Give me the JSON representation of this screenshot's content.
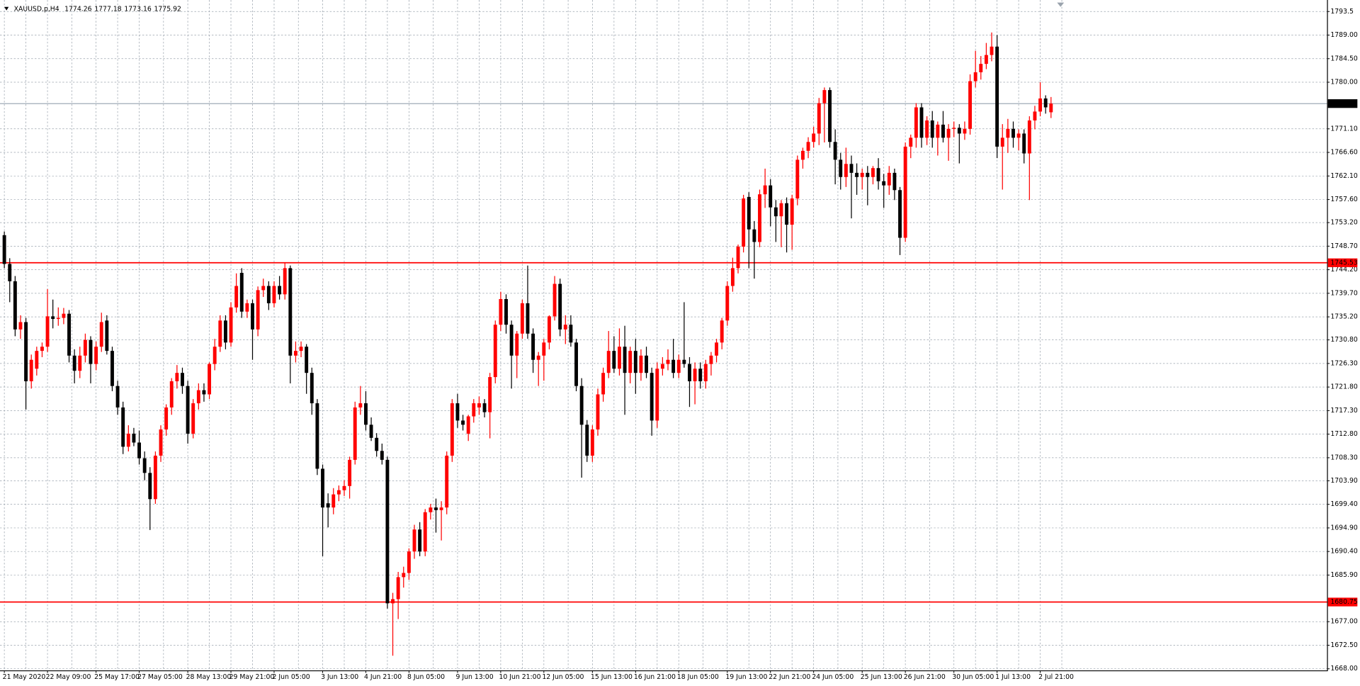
{
  "chart_data": {
    "type": "candlestick",
    "title": "XAUUSD.p,H4",
    "up_color": "#ff0000",
    "down_color": "#000000",
    "grid": true,
    "price_line_color": "#778899",
    "levels": [
      {
        "value": 1745.53,
        "color": "#ff0000"
      },
      {
        "value": 1680.75,
        "color": "#ff0000"
      }
    ],
    "ylim": [
      1667.7,
      1795.7
    ],
    "yticks": [
      1793.5,
      {
        "value": 1789,
        "label": "1789.00"
      },
      {
        "value": 1784.5,
        "label": "1784.50"
      },
      {
        "value": 1780,
        "label": "1780.00"
      },
      {
        "value": 1771.1,
        "label": "1771.10"
      },
      {
        "value": 1766.6,
        "label": "1766.60"
      },
      {
        "value": 1762.1,
        "label": "1762.10"
      },
      {
        "value": 1757.6,
        "label": "1757.60"
      },
      {
        "value": 1753.2,
        "label": "1753.20"
      },
      {
        "value": 1748.7,
        "label": "1748.70"
      },
      {
        "value": 1744.2,
        "label": "1744.20"
      },
      {
        "value": 1739.7,
        "label": "1739.70"
      },
      {
        "value": 1735.2,
        "label": "1735.20"
      },
      {
        "value": 1730.8,
        "label": "1730.80"
      },
      {
        "value": 1726.3,
        "label": "1726.30"
      },
      {
        "value": 1721.8,
        "label": "1721.80"
      },
      {
        "value": 1717.3,
        "label": "1717.30"
      },
      {
        "value": 1712.8,
        "label": "1712.80"
      },
      {
        "value": 1708.3,
        "label": "1708.30"
      },
      {
        "value": 1703.9,
        "label": "1703.90"
      },
      {
        "value": 1699.4,
        "label": "1699.40"
      },
      {
        "value": 1694.9,
        "label": "1694.90"
      },
      {
        "value": 1690.4,
        "label": "1690.40"
      },
      {
        "value": 1685.9,
        "label": "1685.90"
      },
      {
        "value": 1677,
        "label": "1677.00"
      },
      {
        "value": 1672.5,
        "label": "1672.50"
      },
      {
        "value": 1668,
        "label": "1668.00"
      }
    ],
    "categories": [
      "21 May 2020",
      null,
      null,
      null,
      null,
      null,
      null,
      null,
      "22 May 09:00",
      null,
      null,
      null,
      null,
      null,
      null,
      null,
      null,
      "25 May 17:00",
      null,
      null,
      null,
      null,
      null,
      null,
      null,
      "27 May 05:00",
      null,
      null,
      null,
      null,
      null,
      null,
      null,
      null,
      "28 May 13:00",
      null,
      null,
      null,
      null,
      null,
      null,
      null,
      "29 May 21:00",
      null,
      null,
      null,
      null,
      null,
      null,
      null,
      "2 Jun 05:00",
      null,
      null,
      null,
      null,
      null,
      null,
      null,
      null,
      "3 Jun 13:00",
      null,
      null,
      null,
      null,
      null,
      null,
      null,
      "4 Jun 21:00",
      null,
      null,
      null,
      null,
      null,
      null,
      null,
      "8 Jun 05:00",
      null,
      null,
      null,
      null,
      null,
      null,
      null,
      null,
      "9 Jun 13:00",
      null,
      null,
      null,
      null,
      null,
      null,
      null,
      "10 Jun 21:00",
      null,
      null,
      null,
      null,
      null,
      null,
      null,
      "12 Jun 05:00",
      null,
      null,
      null,
      null,
      null,
      null,
      null,
      null,
      "15 Jun 13:00",
      null,
      null,
      null,
      null,
      null,
      null,
      null,
      "16 Jun 21:00",
      null,
      null,
      null,
      null,
      null,
      null,
      null,
      "18 Jun 05:00",
      null,
      null,
      null,
      null,
      null,
      null,
      null,
      null,
      "19 Jun 13:00",
      null,
      null,
      null,
      null,
      null,
      null,
      null,
      "22 Jun 21:00",
      null,
      null,
      null,
      null,
      null,
      null,
      null,
      "24 Jun 05:00",
      null,
      null,
      null,
      null,
      null,
      null,
      null,
      null,
      "25 Jun 13:00",
      null,
      null,
      null,
      null,
      null,
      null,
      null,
      "26 Jun 21:00",
      null,
      null,
      null,
      null,
      null,
      null,
      null,
      null,
      "30 Jun 05:00",
      null,
      null,
      null,
      null,
      null,
      null,
      null,
      "1 Jul 13:00",
      null,
      null,
      null,
      null,
      null,
      null,
      null,
      "2 Jul 21:00",
      null,
      null
    ],
    "open": [
      1750.8,
      1745.3,
      1742.0,
      1732.8,
      1734.2,
      1722.9,
      1725.3,
      1728.7,
      1729.5,
      1735.3,
      1734.8,
      1735.0,
      1735.8,
      1727.8,
      1724.9,
      1727.8,
      1730.8,
      1726.2,
      1729.5,
      1734.5,
      1728.7,
      1722.0,
      1717.9,
      1710.4,
      1712.9,
      1711.2,
      1708.2,
      1705.4,
      1700.4,
      1708.7,
      1713.7,
      1717.9,
      1722.9,
      1724.5,
      1722.0,
      1712.9,
      1718.7,
      1721.2,
      1720.4,
      1726.2,
      1729.5,
      1734.5,
      1730.3,
      1737.0,
      1743.6,
      1736.2,
      1737.8,
      1732.8,
      1740.3,
      1741.1,
      1737.8,
      1741.1,
      1739.5,
      1744.5,
      1727.8,
      1728.7,
      1729.5,
      1724.5,
      1718.7,
      1706.2,
      1699.6,
      1698.8,
      1701.3,
      1702.1,
      1702.9,
      1707.9,
      1717.9,
      1718.7,
      1714.6,
      1712.1,
      1709.6,
      1707.9,
      1680.5,
      1681.3,
      1685.5,
      1686.3,
      1690.4,
      1694.6,
      1690.4,
      1697.9,
      1698.8,
      1698.3,
      1698.8,
      1708.7,
      1718.7,
      1715.4,
      1712.9,
      1716.2,
      1717.9,
      1718.7,
      1717.0,
      1723.7,
      1733.7,
      1738.6,
      1733.7,
      1727.8,
      1732.0,
      1737.8,
      1732.0,
      1727.0,
      1727.8,
      1730.3,
      1735.3,
      1741.5,
      1732.8,
      1733.7,
      1730.3,
      1722.0,
      1714.6,
      1708.7,
      1713.7,
      1720.4,
      1724.5,
      1728.7,
      1725.3,
      1729.5,
      1724.5,
      1728.7,
      1724.5,
      1727.8,
      1724.5,
      1715.4,
      1725.3,
      1726.2,
      1727.0,
      1724.5,
      1727.0,
      1726.2,
      1722.9,
      1725.3,
      1722.9,
      1726.2,
      1727.8,
      1730.3,
      1734.5,
      1741.1,
      1744.5,
      1748.6,
      1758.1,
      1751.9,
      1749.5,
      1758.6,
      1760.3,
      1756.1,
      1754.4,
      1756.9,
      1752.8,
      1757.8,
      1765.2,
      1766.9,
      1768.6,
      1770.2,
      1776.0,
      1778.5,
      1768.6,
      1765.2,
      1761.9,
      1764.4,
      1762.7,
      1761.9,
      1762.7,
      1761.9,
      1763.6,
      1761.1,
      1760.3,
      1762.7,
      1759.4,
      1750.3,
      1767.7,
      1769.4,
      1775.2,
      1769.4,
      1772.7,
      1769.4,
      1771.9,
      1769.4,
      1771.1,
      1771.3,
      1770.2,
      1771.1,
      1780.2,
      1781.9,
      1783.5,
      1785.2,
      1786.8,
      1767.7,
      1769.4,
      1771.1,
      1769.4,
      1770.2,
      1766.4,
      1772.7,
      1774.4,
      1776.9,
      1774.26
    ],
    "high": [
      1751.5,
      1746.4,
      1743.0,
      1735.5,
      1735.0,
      1728.0,
      1729.5,
      1730.3,
      1740.5,
      1738.5,
      1737.0,
      1736.9,
      1736.5,
      1729.0,
      1729.5,
      1732.0,
      1731.5,
      1730.5,
      1736.0,
      1735.5,
      1729.5,
      1723.0,
      1719.0,
      1714.5,
      1714.0,
      1713.5,
      1709.5,
      1706.5,
      1709.5,
      1714.5,
      1718.5,
      1723.5,
      1726.0,
      1725.5,
      1723.0,
      1719.5,
      1722.5,
      1722.5,
      1726.5,
      1731.0,
      1735.5,
      1735.5,
      1738.0,
      1743.5,
      1744.5,
      1738.5,
      1738.5,
      1741.0,
      1742.5,
      1742.0,
      1742.0,
      1743.0,
      1745.5,
      1745.0,
      1730.5,
      1730.5,
      1730.0,
      1725.5,
      1719.5,
      1707.0,
      1701.5,
      1702.5,
      1703.0,
      1704.0,
      1708.5,
      1719.0,
      1722.0,
      1721.0,
      1716.0,
      1713.0,
      1711.0,
      1708.5,
      1682.5,
      1686.5,
      1687.5,
      1691.0,
      1695.5,
      1696.0,
      1698.5,
      1699.5,
      1700.5,
      1700.0,
      1709.5,
      1719.5,
      1720.5,
      1716.5,
      1716.5,
      1719.5,
      1720.0,
      1719.5,
      1724.5,
      1734.5,
      1740.0,
      1739.5,
      1734.5,
      1732.5,
      1738.5,
      1745.0,
      1733.0,
      1728.5,
      1731.0,
      1735.5,
      1743.0,
      1742.5,
      1735.5,
      1735.5,
      1731.0,
      1723.5,
      1715.5,
      1714.5,
      1721.5,
      1725.5,
      1732.5,
      1731.5,
      1733.0,
      1733.5,
      1729.5,
      1731.0,
      1729.0,
      1729.5,
      1725.5,
      1726.5,
      1727.5,
      1729.0,
      1731.0,
      1728.0,
      1738.0,
      1727.5,
      1726.5,
      1726.5,
      1727.0,
      1728.5,
      1731.0,
      1735.0,
      1742.0,
      1746.5,
      1749.0,
      1758.5,
      1759.0,
      1753.5,
      1759.5,
      1763.5,
      1761.5,
      1757.5,
      1757.5,
      1758.0,
      1758.5,
      1766.0,
      1767.5,
      1769.5,
      1771.5,
      1777.0,
      1779.0,
      1779.0,
      1771.0,
      1766.5,
      1767.5,
      1766.0,
      1764.5,
      1763.5,
      1764.0,
      1764.0,
      1765.5,
      1762.5,
      1764.0,
      1763.5,
      1760.0,
      1768.5,
      1770.0,
      1776.0,
      1776.0,
      1773.5,
      1774.5,
      1772.5,
      1774.5,
      1772.0,
      1772.5,
      1772.0,
      1772.5,
      1781.5,
      1786.0,
      1785.0,
      1787.5,
      1789.5,
      1789.0,
      1772.0,
      1773.0,
      1772.5,
      1771.0,
      1771.0,
      1773.5,
      1775.5,
      1780.0,
      1777.5,
      1777.18
    ],
    "low": [
      1744.5,
      1738.0,
      1731.5,
      1731.0,
      1717.5,
      1721.5,
      1724.0,
      1727.5,
      1728.5,
      1733.0,
      1733.5,
      1733.8,
      1726.5,
      1722.5,
      1723.5,
      1726.5,
      1722.5,
      1725.0,
      1728.5,
      1728.0,
      1721.0,
      1716.5,
      1709.0,
      1709.5,
      1710.5,
      1707.0,
      1704.0,
      1694.5,
      1699.5,
      1707.5,
      1712.5,
      1716.5,
      1721.5,
      1720.5,
      1711.0,
      1712.0,
      1717.5,
      1719.0,
      1719.5,
      1725.0,
      1728.5,
      1729.0,
      1729.5,
      1736.0,
      1735.0,
      1735.0,
      1727.0,
      1731.5,
      1739.0,
      1736.5,
      1737.0,
      1738.5,
      1738.5,
      1722.5,
      1726.5,
      1727.5,
      1720.5,
      1716.5,
      1705.0,
      1689.5,
      1695.0,
      1697.5,
      1700.0,
      1701.0,
      1700.5,
      1707.0,
      1716.5,
      1713.5,
      1711.5,
      1708.5,
      1707.0,
      1679.5,
      1670.5,
      1677.5,
      1683.5,
      1685.0,
      1689.0,
      1689.5,
      1689.5,
      1696.5,
      1694.0,
      1692.5,
      1697.5,
      1707.5,
      1714.0,
      1713.5,
      1711.5,
      1715.0,
      1716.5,
      1716.0,
      1712.0,
      1722.5,
      1732.5,
      1732.0,
      1721.5,
      1723.5,
      1731.0,
      1731.0,
      1724.5,
      1722.0,
      1723.0,
      1729.0,
      1734.5,
      1731.5,
      1730.0,
      1729.5,
      1721.0,
      1704.5,
      1707.5,
      1707.5,
      1712.5,
      1719.0,
      1723.5,
      1724.5,
      1724.0,
      1716.5,
      1722.5,
      1720.5,
      1723.0,
      1723.5,
      1712.5,
      1714.0,
      1724.0,
      1725.0,
      1723.5,
      1723.5,
      1725.5,
      1718.0,
      1718.5,
      1721.5,
      1721.5,
      1724.0,
      1726.5,
      1729.0,
      1733.5,
      1740.0,
      1743.5,
      1747.5,
      1744.5,
      1742.5,
      1748.5,
      1756.0,
      1752.5,
      1749.5,
      1748.5,
      1747.5,
      1748.0,
      1756.5,
      1763.5,
      1765.5,
      1767.5,
      1768.0,
      1768.5,
      1767.5,
      1760.5,
      1759.5,
      1760.0,
      1754.0,
      1758.5,
      1759.5,
      1756.5,
      1760.5,
      1759.5,
      1756.0,
      1758.5,
      1757.5,
      1747.0,
      1749.5,
      1765.5,
      1767.5,
      1767.5,
      1768.0,
      1767.5,
      1766.0,
      1768.5,
      1765.0,
      1769.5,
      1764.5,
      1769.0,
      1770.0,
      1779.0,
      1780.5,
      1782.5,
      1784.0,
      1765.5,
      1759.5,
      1766.5,
      1767.5,
      1767.0,
      1764.5,
      1757.5,
      1771.0,
      1773.5,
      1774.0,
      1773.16
    ],
    "close": [
      1745.3,
      1742.0,
      1732.8,
      1734.2,
      1722.9,
      1727.0,
      1728.7,
      1729.5,
      1735.3,
      1734.8,
      1735.0,
      1735.8,
      1727.8,
      1724.9,
      1727.8,
      1730.8,
      1726.2,
      1729.5,
      1734.2,
      1728.7,
      1722.0,
      1717.9,
      1710.4,
      1712.9,
      1711.2,
      1708.2,
      1705.4,
      1700.4,
      1708.7,
      1713.7,
      1717.9,
      1722.9,
      1724.5,
      1722.0,
      1712.9,
      1718.7,
      1721.2,
      1720.4,
      1726.2,
      1729.5,
      1734.5,
      1730.3,
      1737.0,
      1741.1,
      1736.2,
      1737.8,
      1732.8,
      1740.3,
      1741.1,
      1737.8,
      1741.1,
      1739.5,
      1744.5,
      1727.8,
      1728.7,
      1729.5,
      1724.5,
      1718.7,
      1706.2,
      1698.8,
      1698.8,
      1701.3,
      1702.1,
      1702.9,
      1707.9,
      1717.9,
      1718.7,
      1714.6,
      1712.1,
      1709.6,
      1707.9,
      1680.5,
      1681.3,
      1685.5,
      1686.3,
      1690.4,
      1694.6,
      1690.4,
      1697.9,
      1698.8,
      1698.3,
      1698.8,
      1708.7,
      1718.7,
      1715.4,
      1714.6,
      1716.2,
      1718.7,
      1718.7,
      1717.0,
      1723.7,
      1733.7,
      1738.6,
      1733.7,
      1727.8,
      1732.0,
      1737.8,
      1732.0,
      1727.0,
      1727.8,
      1730.3,
      1735.3,
      1741.5,
      1732.8,
      1733.7,
      1730.3,
      1722.0,
      1714.6,
      1708.7,
      1713.7,
      1720.4,
      1724.5,
      1728.7,
      1725.3,
      1729.5,
      1724.5,
      1728.7,
      1724.5,
      1727.8,
      1724.5,
      1715.4,
      1725.3,
      1726.2,
      1727.0,
      1724.5,
      1727.0,
      1726.2,
      1722.9,
      1725.3,
      1722.9,
      1726.2,
      1727.8,
      1730.3,
      1734.5,
      1741.1,
      1744.5,
      1748.6,
      1757.8,
      1751.9,
      1749.5,
      1758.6,
      1760.3,
      1756.1,
      1754.4,
      1756.9,
      1752.8,
      1757.8,
      1765.2,
      1766.9,
      1768.6,
      1770.2,
      1776.0,
      1778.5,
      1768.6,
      1765.2,
      1761.9,
      1764.4,
      1762.7,
      1761.9,
      1762.7,
      1761.9,
      1763.6,
      1761.1,
      1760.3,
      1762.7,
      1759.4,
      1750.3,
      1767.7,
      1769.4,
      1775.2,
      1769.4,
      1772.7,
      1769.4,
      1771.9,
      1769.4,
      1771.1,
      1771.3,
      1770.2,
      1771.1,
      1780.2,
      1781.9,
      1783.5,
      1785.2,
      1786.8,
      1767.7,
      1769.4,
      1771.1,
      1769.4,
      1770.2,
      1766.4,
      1772.7,
      1774.4,
      1776.9,
      1775.2,
      1775.92
    ]
  }
}
